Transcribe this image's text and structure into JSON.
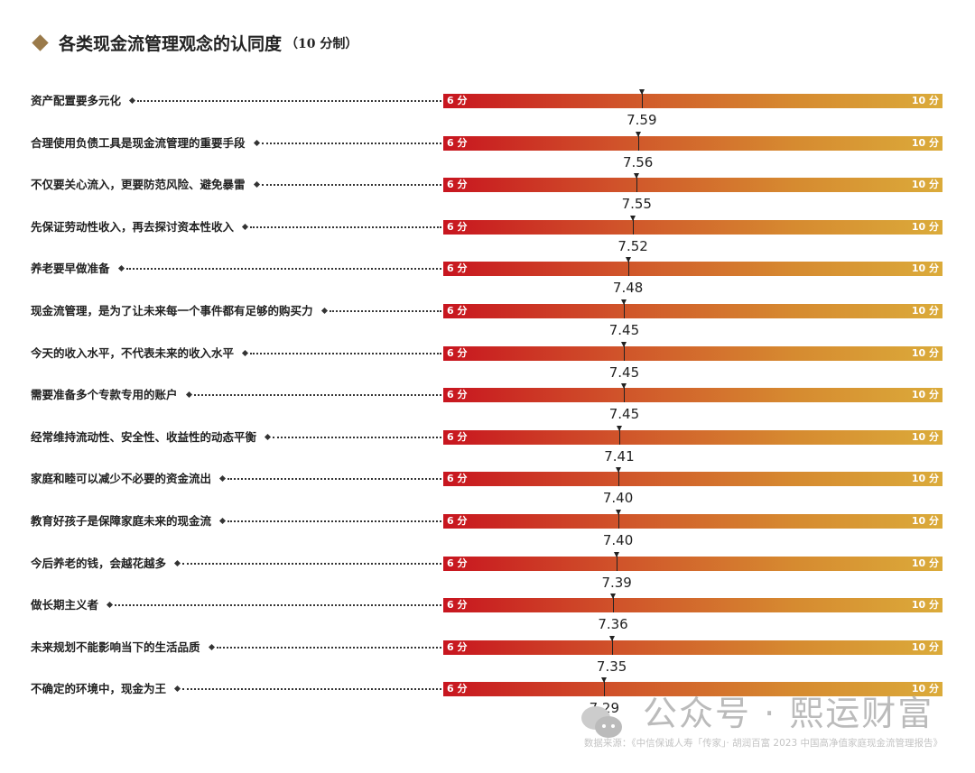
{
  "title": "各类现金流管理观念的认同度",
  "subtitle": "（10 分制）",
  "chart_data": {
    "type": "bar",
    "xlim": [
      6,
      10
    ],
    "min_label": "6 分",
    "max_label": "10 分",
    "colors": {
      "start": "#c8151f",
      "end": "#dbab3a"
    },
    "categories": [
      "资产配置要多元化",
      "合理使用负债工具是现金流管理的重要手段",
      "不仅要关心流入，更要防范风险、避免暴雷",
      "先保证劳动性收入，再去探讨资本性收入",
      "养老要早做准备",
      "现金流管理，是为了让未来每一个事件都有足够的购买力",
      "今天的收入水平，不代表未来的收入水平",
      "需要准备多个专款专用的账户",
      "经常维持流动性、安全性、收益性的动态平衡",
      "家庭和睦可以减少不必要的资金流出",
      "教育好孩子是保障家庭未来的现金流",
      "今后养老的钱，会越花越多",
      "做长期主义者",
      "未来规划不能影响当下的生活品质",
      "不确定的环境中，现金为王"
    ],
    "values": [
      "7.59",
      "7.56",
      "7.55",
      "7.52",
      "7.48",
      "7.45",
      "7.45",
      "7.45",
      "7.41",
      "7.40",
      "7.40",
      "7.39",
      "7.36",
      "7.35",
      "7.29"
    ]
  },
  "watermark": "公众号 · 熙运财富",
  "source": "数据来源：《中信保诚人寿「传家」· 胡润百富 2023 中国高净值家庭现金流管理报告》"
}
